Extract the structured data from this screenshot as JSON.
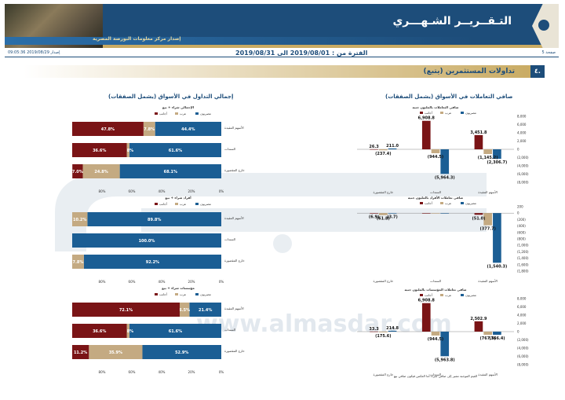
{
  "header": {
    "title": "التـقــريــر الشـهـــري",
    "subtitle": "إصدار مركز معلومات البورصة المصرية",
    "page": "صفحة 5",
    "period": "الفترة من : 2019/08/01 الى 2019/08/31",
    "print": "إصدار 2019/08/29 09:05:36"
  },
  "section": {
    "num": "٤.",
    "title": "تداولات المستثمرين  (يتبع)"
  },
  "left_title": "صافي التعاملات في الأسواق (يشمل الصفقات)",
  "right_title": "إجمالي التداول في الأسواق (يشمل الصفقات)",
  "watermark": "www.almasdar.com",
  "footnote": "القيم الموجبة تشير إلى صافي شراء أما العكس فيكون صافي بيع",
  "colors": {
    "egyptian": "#1b5e94",
    "arab": "#c4aa82",
    "foreign": "#7a1416",
    "navy": "#1d4d7a",
    "gold": "#c9ab63"
  },
  "legend": {
    "egyptian": "مصريون",
    "arab": "عرب",
    "foreign": "أجانب"
  },
  "chart_data": [
    {
      "type": "bar",
      "title": "صافي التعاملات بالمليون جنيه",
      "categories": [
        "الأسهم المقيدة",
        "السندات",
        "خارج المقصورة"
      ],
      "series": [
        {
          "name": "مصريون",
          "values": [
            -2306.7,
            -5964.3,
            211.0
          ]
        },
        {
          "name": "عرب",
          "values": [
            -1145.2,
            -944.5,
            -237.4
          ]
        },
        {
          "name": "أجانب",
          "values": [
            3451.8,
            6908.8,
            26.3
          ]
        }
      ],
      "ylim": [
        -8000,
        8000
      ],
      "ticks": [
        "8,000",
        "6,000",
        "4,000",
        "2,000",
        "0",
        "(2,000)",
        "(4,000)",
        "(6,000)",
        "(8,000)"
      ],
      "labels": [
        [
          "(2,306.7)",
          "(1,145.2)",
          "3,451.8"
        ],
        [
          "(5,964.3)",
          "(944.5)",
          "6,908.8"
        ],
        [
          "211.0",
          "(237.4)",
          "26.3"
        ]
      ]
    },
    {
      "type": "bar",
      "title": "صافي تعاملات الأفراد بالمليون جنيه",
      "categories": [
        "الأسهم المقيدة",
        "السندات",
        "خارج المقصورة"
      ],
      "series": [
        {
          "name": "مصريون",
          "values": [
            -1540.3,
            0,
            -3.7
          ]
        },
        {
          "name": "عرب",
          "values": [
            -377.7,
            0,
            -61.8
          ]
        },
        {
          "name": "أجانب",
          "values": [
            -51.0,
            0,
            -6.9
          ]
        }
      ],
      "ylim": [
        -1800,
        200
      ],
      "ticks": [
        "200",
        "0",
        "(200)",
        "(400)",
        "(600)",
        "(800)",
        "(1,000)",
        "(1,200)",
        "(1,400)",
        "(1,600)",
        "(1,800)"
      ],
      "labels": [
        [
          "(1,540.3)",
          "(377.7)",
          "(51.0)"
        ],
        [
          "",
          "",
          ""
        ],
        [
          "(3.7)",
          "(61.8)",
          "(6.9)"
        ]
      ]
    },
    {
      "type": "bar",
      "title": "صافي تعاملات المؤسسات بالمليون جنيه",
      "categories": [
        "الأسهم المقيدة",
        "السندات",
        "خارج المقصورة"
      ],
      "series": [
        {
          "name": "مصريون",
          "values": [
            -766.4,
            -5963.8,
            214.8
          ]
        },
        {
          "name": "عرب",
          "values": [
            -767.5,
            -944.5,
            -175.6
          ]
        },
        {
          "name": "أجانب",
          "values": [
            2502.9,
            6908.8,
            33.3
          ]
        }
      ],
      "ylim": [
        -8000,
        8000
      ],
      "ticks": [
        "8,000",
        "6,000",
        "4,000",
        "2,000",
        "0",
        "(2,000)",
        "(4,000)",
        "(6,000)",
        "(8,000)"
      ],
      "labels": [
        [
          "(766.4)",
          "(767.5)",
          "2,502.9"
        ],
        [
          "(5,963.8)",
          "(944.5)",
          "6,908.8"
        ],
        [
          "214.8",
          "(175.6)",
          "33.3"
        ]
      ]
    },
    {
      "type": "bar",
      "title": "الإجمالي شراء + بيع",
      "categories": [
        "الأسهم المقيدة",
        "السندات",
        "خارج المقصورة"
      ],
      "series": [
        {
          "name": "مصريون",
          "values": [
            44.4,
            61.6,
            68.1
          ]
        },
        {
          "name": "عرب",
          "values": [
            7.8,
            1.8,
            24.8
          ]
        },
        {
          "name": "أجانب",
          "values": [
            47.8,
            36.6,
            7.0
          ]
        }
      ],
      "labels": [
        [
          "44.4%",
          "7.8%",
          "47.8%"
        ],
        [
          "61.6%",
          "1.8%",
          "36.6%"
        ],
        [
          "68.1%",
          "24.8%",
          "7.0%"
        ]
      ]
    },
    {
      "type": "bar",
      "title": "أفراد شراء + بيع",
      "categories": [
        "الأسهم المقيدة",
        "السندات",
        "خارج المقصورة"
      ],
      "series": [
        {
          "name": "مصريون",
          "values": [
            89.8,
            100.0,
            92.2
          ]
        },
        {
          "name": "عرب",
          "values": [
            10.2,
            0,
            7.8
          ]
        },
        {
          "name": "أجانب",
          "values": [
            0,
            0,
            0
          ]
        }
      ],
      "labels": [
        [
          "89.8%",
          "10.2%",
          ""
        ],
        [
          "100.0%",
          "",
          ""
        ],
        [
          "92.2%",
          "7.8%",
          ""
        ]
      ]
    },
    {
      "type": "bar",
      "title": "مؤسسات شراء + بيع",
      "categories": [
        "الأسهم المقيدة",
        "السندات",
        "خارج المقصورة"
      ],
      "series": [
        {
          "name": "مصريون",
          "values": [
            21.4,
            61.6,
            52.9
          ]
        },
        {
          "name": "عرب",
          "values": [
            6.5,
            1.8,
            35.9
          ]
        },
        {
          "name": "أجانب",
          "values": [
            72.1,
            36.6,
            11.2
          ]
        }
      ],
      "labels": [
        [
          "21.4%",
          "6.5%",
          "72.1%"
        ],
        [
          "61.6%",
          "1.8%",
          "36.6%"
        ],
        [
          "52.9%",
          "35.9%",
          "11.2%"
        ]
      ]
    }
  ]
}
